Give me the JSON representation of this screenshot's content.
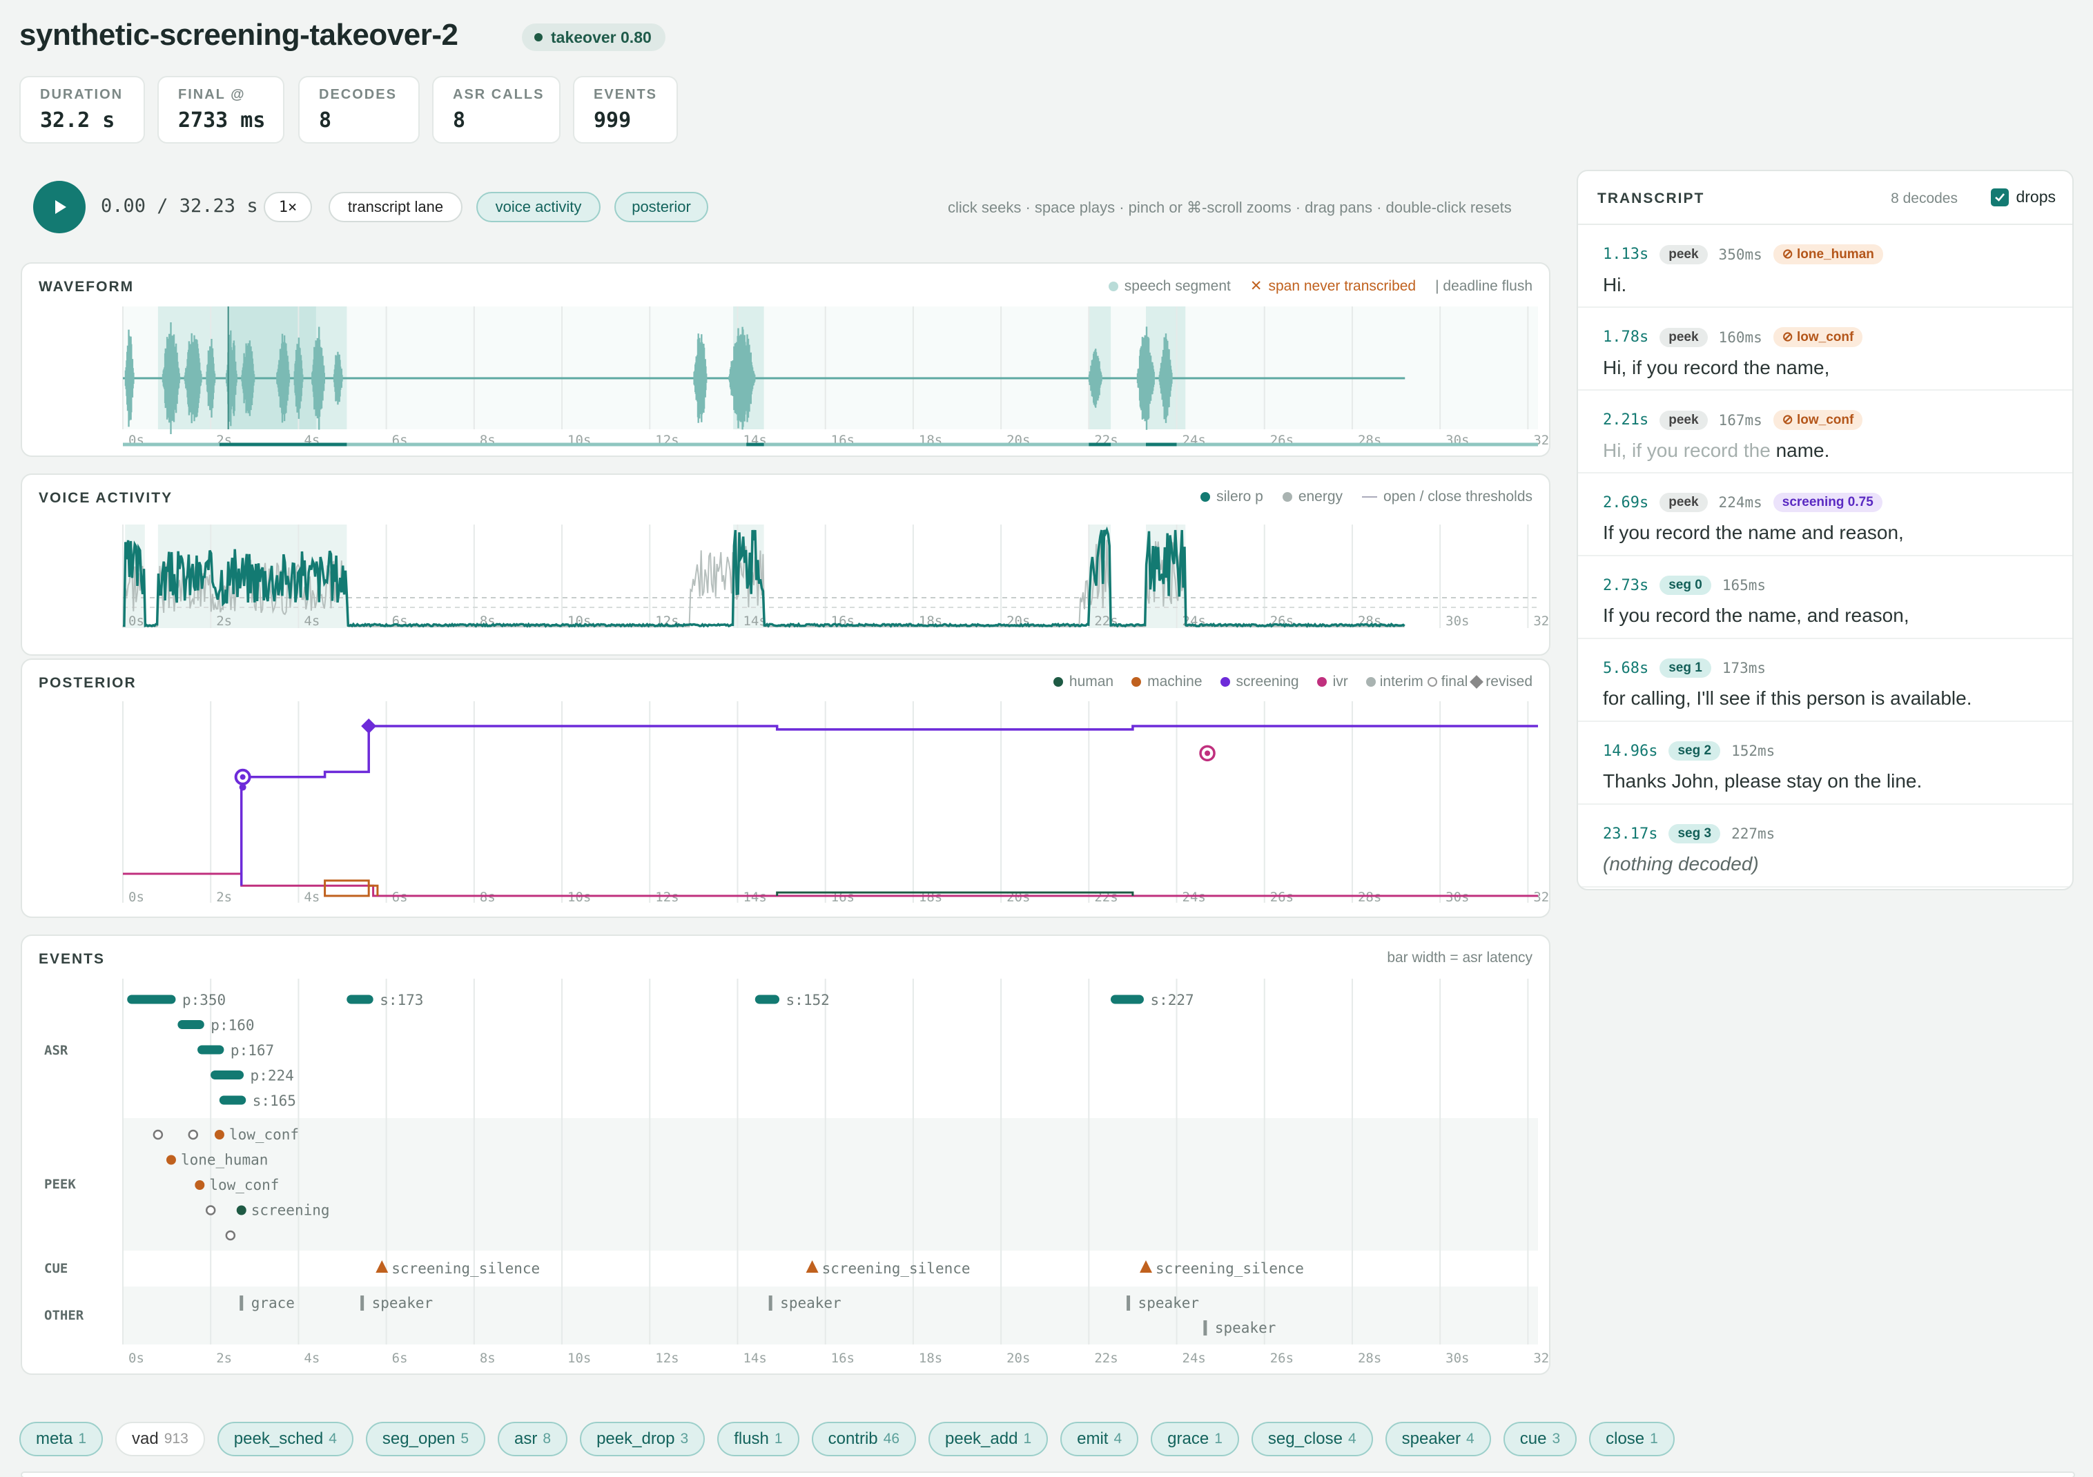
{
  "header": {
    "title": "synthetic-screening-takeover-2",
    "badge": "takeover 0.80"
  },
  "stats": [
    {
      "label": "DURATION",
      "value": "32.2 s"
    },
    {
      "label": "FINAL @",
      "value": "2733 ms"
    },
    {
      "label": "DECODES",
      "value": "8"
    },
    {
      "label": "ASR CALLS",
      "value": "8"
    },
    {
      "label": "EVENTS",
      "value": "999"
    }
  ],
  "controls": {
    "time": "0.00 / 32.23 s",
    "speed": "1×",
    "toggles": [
      "transcript lane",
      "voice activity",
      "posterior"
    ],
    "hint": "click seeks · space plays · pinch or ⌘-scroll zooms · drag pans · double-click resets"
  },
  "axis_ticks": [
    "0s",
    "2s",
    "4s",
    "6s",
    "8s",
    "10s",
    "12s",
    "14s",
    "16s",
    "18s",
    "20s",
    "22s",
    "24s",
    "26s",
    "28s",
    "30s",
    "32s"
  ],
  "waveform": {
    "title": "WAVEFORM",
    "legend": {
      "speech": "speech segment",
      "never": "span never transcribed",
      "flush": "| deadline flush"
    },
    "speech_segments_s": [
      [
        0.8,
        5.1
      ],
      [
        13.9,
        14.6
      ],
      [
        22.0,
        22.5
      ],
      [
        23.3,
        24.2
      ]
    ]
  },
  "voice_activity": {
    "title": "VOICE ACTIVITY",
    "legend": {
      "silero": "silero p",
      "energy": "energy",
      "thresh": "open / close thresholds"
    }
  },
  "posterior": {
    "title": "POSTERIOR",
    "legend": {
      "human": "human",
      "machine": "machine",
      "screening": "screening",
      "ivr": "ivr",
      "interim": "interim",
      "final": "final",
      "revised": "revised"
    }
  },
  "events": {
    "title": "EVENTS",
    "note": "bar width = asr latency",
    "lanes": {
      "asr": "ASR",
      "peek": "PEEK",
      "cue": "CUE",
      "other": "OTHER"
    },
    "asr": [
      {
        "t": 0.2,
        "w": 0.9,
        "row": 0,
        "label": "p:350"
      },
      {
        "t": 5.2,
        "w": 0.4,
        "row": 0,
        "label": "s:173"
      },
      {
        "t": 14.5,
        "w": 0.35,
        "row": 0,
        "label": "s:152"
      },
      {
        "t": 22.6,
        "w": 0.55,
        "row": 0,
        "label": "s:227"
      },
      {
        "t": 1.35,
        "w": 0.4,
        "row": 1,
        "label": "p:160"
      },
      {
        "t": 1.8,
        "w": 0.4,
        "row": 2,
        "label": "p:167"
      },
      {
        "t": 2.1,
        "w": 0.55,
        "row": 3,
        "label": "p:224"
      },
      {
        "t": 2.3,
        "w": 0.4,
        "row": 4,
        "label": "s:165"
      }
    ],
    "peek": [
      {
        "t": 0.8,
        "row": 0,
        "kind": "open",
        "label": ""
      },
      {
        "t": 1.6,
        "row": 0,
        "kind": "open",
        "label": ""
      },
      {
        "t": 2.2,
        "row": 0,
        "kind": "human",
        "label": "low_conf"
      },
      {
        "t": 1.1,
        "row": 1,
        "kind": "machine",
        "label": "lone_human"
      },
      {
        "t": 1.75,
        "row": 2,
        "kind": "machine",
        "label": "low_conf"
      },
      {
        "t": 2.0,
        "row": 3,
        "kind": "open",
        "label": ""
      },
      {
        "t": 2.7,
        "row": 3,
        "kind": "screening",
        "label": "screening"
      },
      {
        "t": 2.45,
        "row": 4,
        "kind": "open",
        "label": ""
      }
    ],
    "cue": [
      {
        "t": 5.9,
        "label": "screening_silence"
      },
      {
        "t": 15.7,
        "label": "screening_silence"
      },
      {
        "t": 23.3,
        "label": "screening_silence"
      }
    ],
    "other": [
      {
        "t": 2.7,
        "row": 0,
        "label": "grace"
      },
      {
        "t": 5.45,
        "row": 0,
        "label": "speaker"
      },
      {
        "t": 14.75,
        "row": 0,
        "label": "speaker"
      },
      {
        "t": 22.9,
        "row": 0,
        "label": "speaker"
      },
      {
        "t": 24.65,
        "row": 1,
        "label": "speaker"
      }
    ]
  },
  "transcript": {
    "title": "TRANSCRIPT",
    "count": "8 decodes",
    "drops_label": "drops",
    "rows": [
      {
        "time": "1.13s",
        "tag": "peek",
        "lat": "350ms",
        "flag": "⊘ lone_human",
        "flagkind": "warn",
        "text": "Hi.",
        "dim": ""
      },
      {
        "time": "1.78s",
        "tag": "peek",
        "lat": "160ms",
        "flag": "⊘ low_conf",
        "flagkind": "warn",
        "text": "Hi, if you record the name,",
        "dim": ""
      },
      {
        "time": "2.21s",
        "tag": "peek",
        "lat": "167ms",
        "flag": "⊘ low_conf",
        "flagkind": "warn",
        "text": "name.",
        "dim": "Hi, if you record the "
      },
      {
        "time": "2.69s",
        "tag": "peek",
        "lat": "224ms",
        "flag": "screening 0.75",
        "flagkind": "scr",
        "text": "If you record the name and reason,",
        "dim": ""
      },
      {
        "time": "2.73s",
        "tag": "seg 0",
        "lat": "165ms",
        "flag": "",
        "flagkind": "",
        "text": "If you record the name, and reason,",
        "dim": ""
      },
      {
        "time": "5.68s",
        "tag": "seg 1",
        "lat": "173ms",
        "flag": "",
        "flagkind": "",
        "text": "for calling, I'll see if this person is available.",
        "dim": ""
      },
      {
        "time": "14.96s",
        "tag": "seg 2",
        "lat": "152ms",
        "flag": "",
        "flagkind": "",
        "text": "Thanks John, please stay on the line.",
        "dim": ""
      },
      {
        "time": "23.17s",
        "tag": "seg 3",
        "lat": "227ms",
        "flag": "",
        "flagkind": "",
        "text": "(nothing decoded)",
        "dim": ""
      }
    ]
  },
  "chips": [
    {
      "label": "meta",
      "n": "1",
      "on": true
    },
    {
      "label": "vad",
      "n": "913",
      "on": false
    },
    {
      "label": "peek_sched",
      "n": "4",
      "on": true
    },
    {
      "label": "seg_open",
      "n": "5",
      "on": true
    },
    {
      "label": "asr",
      "n": "8",
      "on": true
    },
    {
      "label": "peek_drop",
      "n": "3",
      "on": true
    },
    {
      "label": "flush",
      "n": "1",
      "on": true
    },
    {
      "label": "contrib",
      "n": "46",
      "on": true
    },
    {
      "label": "peek_add",
      "n": "1",
      "on": true
    },
    {
      "label": "emit",
      "n": "4",
      "on": true
    },
    {
      "label": "grace",
      "n": "1",
      "on": true
    },
    {
      "label": "seg_close",
      "n": "4",
      "on": true
    },
    {
      "label": "speaker",
      "n": "4",
      "on": true
    },
    {
      "label": "cue",
      "n": "3",
      "on": true
    },
    {
      "label": "close",
      "n": "1",
      "on": true
    }
  ],
  "colors": {
    "teal": "#137a72",
    "human": "#1e5a44",
    "machine": "#c0611e",
    "screening": "#6d2bd9",
    "ivr": "#c0307e",
    "energy": "#a9b3b1"
  }
}
